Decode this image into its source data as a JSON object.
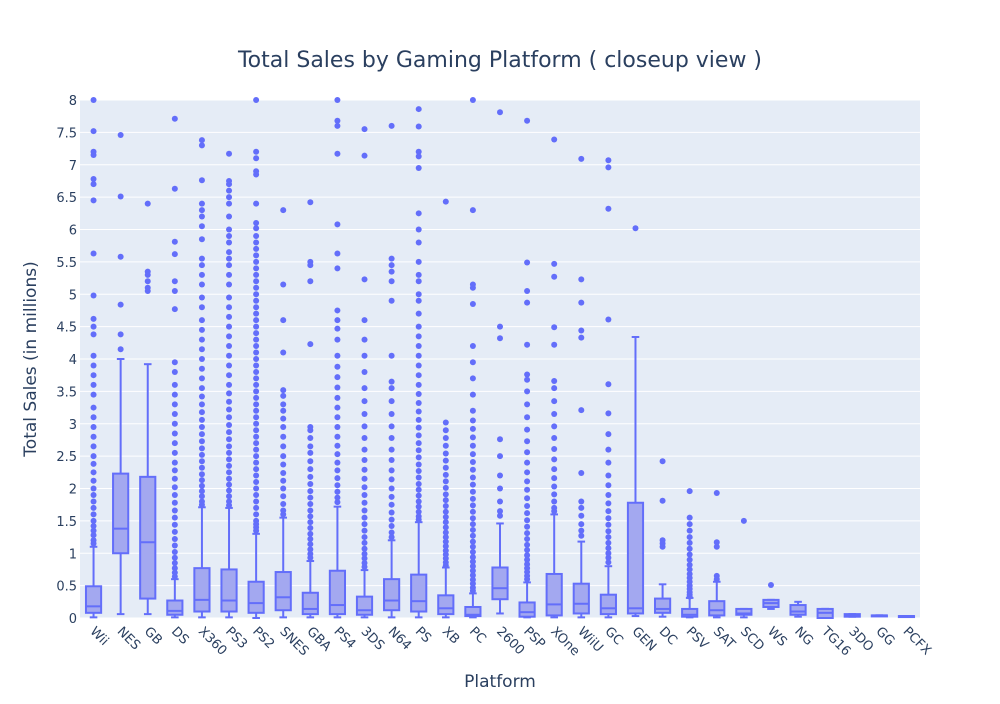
{
  "chart_data": {
    "type": "box",
    "title": "Total Sales by Gaming Platform ( closeup view )",
    "xlabel": "Platform",
    "ylabel": "Total Sales (in millions)",
    "ylim": [
      0,
      8
    ],
    "yticks": [
      0,
      0.5,
      1,
      1.5,
      2,
      2.5,
      3,
      3.5,
      4,
      4.5,
      5,
      5.5,
      6,
      6.5,
      7,
      7.5,
      8
    ],
    "ytick_labels": [
      "0",
      "0.5",
      "1",
      "1.5",
      "2",
      "2.5",
      "3",
      "3.5",
      "4",
      "4.5",
      "5",
      "5.5",
      "6",
      "6.5",
      "7",
      "7.5",
      "8"
    ],
    "grid": true,
    "colors": {
      "box_fill": "#a3a8f0",
      "box_line": "#636efa",
      "plot_bg": "#e5ecf6",
      "text": "#2a3f5f"
    },
    "categories": [
      "Wii",
      "NES",
      "GB",
      "DS",
      "X360",
      "PS3",
      "PS2",
      "SNES",
      "GBA",
      "PS4",
      "3DS",
      "N64",
      "PS",
      "XB",
      "PC",
      "2600",
      "PSP",
      "XOne",
      "WiiU",
      "GC",
      "GEN",
      "DC",
      "PSV",
      "SAT",
      "SCD",
      "WS",
      "NG",
      "TG16",
      "3DO",
      "GG",
      "PCFX"
    ],
    "boxes": [
      {
        "name": "Wii",
        "lowerfence": 0.01,
        "q1": 0.08,
        "median": 0.18,
        "q3": 0.49,
        "upperfence": 1.1,
        "outliers": [
          8.0,
          7.52,
          7.2,
          7.15,
          6.78,
          6.7,
          6.45,
          5.63,
          4.98,
          4.62,
          4.5,
          4.38,
          4.05,
          3.9,
          3.75,
          3.6,
          3.45,
          3.25,
          3.1,
          2.95,
          2.8,
          2.65,
          2.5,
          2.38,
          2.25,
          2.12,
          2.0,
          1.9,
          1.8,
          1.7,
          1.6,
          1.5,
          1.42,
          1.35,
          1.28,
          1.2,
          1.15
        ]
      },
      {
        "name": "NES",
        "lowerfence": 0.06,
        "q1": 1.0,
        "median": 1.38,
        "q3": 2.23,
        "upperfence": 4.0,
        "outliers": [
          7.46,
          6.51,
          5.58,
          4.84,
          4.38,
          4.15
        ]
      },
      {
        "name": "GB",
        "lowerfence": 0.06,
        "q1": 0.3,
        "median": 1.17,
        "q3": 2.18,
        "upperfence": 3.92,
        "outliers": [
          6.4,
          5.35,
          5.3,
          5.2,
          5.1,
          5.05
        ]
      },
      {
        "name": "DS",
        "lowerfence": 0.01,
        "q1": 0.05,
        "median": 0.11,
        "q3": 0.27,
        "upperfence": 0.6,
        "outliers": [
          7.71,
          6.63,
          5.81,
          5.62,
          5.2,
          5.05,
          4.77,
          3.95,
          3.8,
          3.6,
          3.45,
          3.3,
          3.15,
          3.0,
          2.85,
          2.7,
          2.55,
          2.4,
          2.28,
          2.15,
          2.02,
          1.9,
          1.78,
          1.66,
          1.55,
          1.44,
          1.33,
          1.22,
          1.12,
          1.02,
          0.93,
          0.85,
          0.77,
          0.7,
          0.64
        ]
      },
      {
        "name": "X360",
        "lowerfence": 0.01,
        "q1": 0.1,
        "median": 0.28,
        "q3": 0.77,
        "upperfence": 1.71,
        "outliers": [
          7.38,
          7.3,
          6.76,
          6.4,
          6.3,
          6.2,
          6.05,
          5.85,
          5.55,
          5.45,
          5.3,
          5.15,
          4.95,
          4.8,
          4.6,
          4.45,
          4.3,
          4.15,
          4.0,
          3.85,
          3.7,
          3.55,
          3.42,
          3.3,
          3.18,
          3.06,
          2.95,
          2.84,
          2.73,
          2.62,
          2.52,
          2.42,
          2.32,
          2.22,
          2.13,
          2.04,
          1.96,
          1.88,
          1.8,
          1.75
        ]
      },
      {
        "name": "PS3",
        "lowerfence": 0.01,
        "q1": 0.1,
        "median": 0.27,
        "q3": 0.75,
        "upperfence": 1.7,
        "outliers": [
          7.17,
          6.75,
          6.7,
          6.6,
          6.5,
          6.4,
          6.2,
          6.0,
          5.9,
          5.8,
          5.65,
          5.55,
          5.45,
          5.3,
          5.15,
          4.95,
          4.8,
          4.65,
          4.5,
          4.35,
          4.2,
          4.05,
          3.9,
          3.75,
          3.6,
          3.47,
          3.34,
          3.22,
          3.1,
          2.98,
          2.87,
          2.76,
          2.65,
          2.55,
          2.45,
          2.35,
          2.25,
          2.15,
          2.06,
          1.97,
          1.88,
          1.8,
          1.74
        ]
      },
      {
        "name": "PS2",
        "lowerfence": 0.0,
        "q1": 0.08,
        "median": 0.23,
        "q3": 0.56,
        "upperfence": 1.3,
        "outliers": [
          8.0,
          7.2,
          7.1,
          6.9,
          6.85,
          6.4,
          6.1,
          6.02,
          5.9,
          5.8,
          5.7,
          5.6,
          5.5,
          5.4,
          5.3,
          5.2,
          5.1,
          5.0,
          4.9,
          4.8,
          4.7,
          4.6,
          4.5,
          4.4,
          4.3,
          4.2,
          4.1,
          4.0,
          3.9,
          3.8,
          3.7,
          3.6,
          3.5,
          3.4,
          3.3,
          3.2,
          3.1,
          3.0,
          2.9,
          2.8,
          2.7,
          2.6,
          2.5,
          2.4,
          2.3,
          2.2,
          2.1,
          2.0,
          1.9,
          1.8,
          1.7,
          1.6,
          1.5,
          1.45,
          1.4,
          1.35
        ]
      },
      {
        "name": "SNES",
        "lowerfence": 0.01,
        "q1": 0.12,
        "median": 0.32,
        "q3": 0.71,
        "upperfence": 1.55,
        "outliers": [
          6.3,
          5.15,
          4.6,
          4.1,
          3.52,
          3.43,
          3.3,
          3.2,
          3.08,
          2.95,
          2.8,
          2.65,
          2.5,
          2.37,
          2.24,
          2.12,
          2.0,
          1.88,
          1.76,
          1.66,
          1.6
        ]
      },
      {
        "name": "GBA",
        "lowerfence": 0.01,
        "q1": 0.06,
        "median": 0.14,
        "q3": 0.39,
        "upperfence": 0.88,
        "outliers": [
          6.42,
          5.5,
          5.45,
          5.2,
          4.23,
          2.95,
          2.9,
          2.78,
          2.65,
          2.55,
          2.42,
          2.3,
          2.18,
          2.07,
          1.96,
          1.86,
          1.76,
          1.66,
          1.57,
          1.48,
          1.39,
          1.3,
          1.22,
          1.14,
          1.06,
          0.99,
          0.93
        ]
      },
      {
        "name": "PS4",
        "lowerfence": 0.01,
        "q1": 0.06,
        "median": 0.2,
        "q3": 0.73,
        "upperfence": 1.72,
        "outliers": [
          8.0,
          7.68,
          7.6,
          7.17,
          6.08,
          5.63,
          5.4,
          4.75,
          4.6,
          4.47,
          4.3,
          4.05,
          3.88,
          3.72,
          3.56,
          3.4,
          3.25,
          3.1,
          2.95,
          2.8,
          2.66,
          2.53,
          2.4,
          2.28,
          2.16,
          2.05,
          1.95,
          1.86,
          1.79
        ]
      },
      {
        "name": "3DS",
        "lowerfence": 0.01,
        "q1": 0.05,
        "median": 0.12,
        "q3": 0.33,
        "upperfence": 0.74,
        "outliers": [
          7.55,
          7.14,
          5.23,
          4.6,
          4.3,
          4.05,
          3.8,
          3.55,
          3.35,
          3.15,
          2.96,
          2.78,
          2.6,
          2.44,
          2.29,
          2.15,
          2.02,
          1.9,
          1.78,
          1.66,
          1.55,
          1.45,
          1.35,
          1.25,
          1.16,
          1.07,
          0.99,
          0.92,
          0.85,
          0.79
        ]
      },
      {
        "name": "N64",
        "lowerfence": 0.01,
        "q1": 0.12,
        "median": 0.27,
        "q3": 0.6,
        "upperfence": 1.2,
        "outliers": [
          7.6,
          5.55,
          5.45,
          5.35,
          5.2,
          4.9,
          4.05,
          3.65,
          3.55,
          3.35,
          3.15,
          2.96,
          2.78,
          2.6,
          2.44,
          2.28,
          2.14,
          2.0,
          1.87,
          1.75,
          1.63,
          1.52,
          1.42,
          1.32,
          1.25
        ]
      },
      {
        "name": "PS",
        "lowerfence": 0.01,
        "q1": 0.1,
        "median": 0.26,
        "q3": 0.67,
        "upperfence": 1.48,
        "outliers": [
          7.86,
          7.59,
          7.2,
          7.13,
          6.95,
          6.25,
          6.0,
          5.8,
          5.5,
          5.3,
          5.2,
          5.0,
          4.9,
          4.7,
          4.5,
          4.35,
          4.2,
          4.05,
          3.9,
          3.75,
          3.6,
          3.46,
          3.32,
          3.19,
          3.06,
          2.94,
          2.82,
          2.7,
          2.59,
          2.48,
          2.37,
          2.27,
          2.17,
          2.07,
          1.98,
          1.89,
          1.8,
          1.72,
          1.64,
          1.57,
          1.52
        ]
      },
      {
        "name": "XB",
        "lowerfence": 0.01,
        "q1": 0.06,
        "median": 0.15,
        "q3": 0.35,
        "upperfence": 0.78,
        "outliers": [
          6.43,
          3.02,
          2.9,
          2.78,
          2.66,
          2.54,
          2.43,
          2.32,
          2.21,
          2.11,
          2.01,
          1.91,
          1.82,
          1.73,
          1.64,
          1.56,
          1.48,
          1.4,
          1.32,
          1.25,
          1.18,
          1.11,
          1.04,
          0.98,
          0.92,
          0.86,
          0.81
        ]
      },
      {
        "name": "PC",
        "lowerfence": 0.01,
        "q1": 0.03,
        "median": 0.05,
        "q3": 0.17,
        "upperfence": 0.38,
        "outliers": [
          8.0,
          6.3,
          5.15,
          5.1,
          4.85,
          4.2,
          3.95,
          3.7,
          3.45,
          3.2,
          3.05,
          2.92,
          2.79,
          2.66,
          2.53,
          2.41,
          2.29,
          2.17,
          2.06,
          1.95,
          1.84,
          1.74,
          1.64,
          1.54,
          1.45,
          1.36,
          1.27,
          1.18,
          1.1,
          1.02,
          0.94,
          0.87,
          0.8,
          0.73,
          0.66,
          0.59,
          0.53,
          0.47,
          0.42
        ]
      },
      {
        "name": "2600",
        "lowerfence": 0.07,
        "q1": 0.29,
        "median": 0.46,
        "q3": 0.78,
        "upperfence": 1.46,
        "outliers": [
          7.81,
          4.5,
          4.32,
          2.76,
          2.5,
          2.2,
          2.0,
          1.8,
          1.65,
          1.58
        ]
      },
      {
        "name": "PSP",
        "lowerfence": 0.01,
        "q1": 0.02,
        "median": 0.09,
        "q3": 0.24,
        "upperfence": 0.55,
        "outliers": [
          7.68,
          5.49,
          5.05,
          4.87,
          4.22,
          3.76,
          3.68,
          3.5,
          3.3,
          3.1,
          2.91,
          2.73,
          2.56,
          2.4,
          2.25,
          2.11,
          1.98,
          1.85,
          1.73,
          1.62,
          1.51,
          1.41,
          1.31,
          1.22,
          1.13,
          1.05,
          0.97,
          0.9,
          0.83,
          0.77,
          0.71,
          0.65,
          0.6
        ]
      },
      {
        "name": "XOne",
        "lowerfence": 0.01,
        "q1": 0.04,
        "median": 0.21,
        "q3": 0.68,
        "upperfence": 1.6,
        "outliers": [
          7.39,
          5.47,
          5.27,
          4.49,
          4.22,
          3.66,
          3.55,
          3.35,
          3.15,
          2.96,
          2.78,
          2.61,
          2.45,
          2.3,
          2.16,
          2.03,
          1.91,
          1.8,
          1.7,
          1.65
        ]
      },
      {
        "name": "WiiU",
        "lowerfence": 0.01,
        "q1": 0.07,
        "median": 0.22,
        "q3": 0.53,
        "upperfence": 1.18,
        "outliers": [
          7.09,
          5.23,
          4.87,
          4.44,
          4.33,
          3.21,
          2.24,
          1.8,
          1.7,
          1.58,
          1.45,
          1.35,
          1.27
        ]
      },
      {
        "name": "GC",
        "lowerfence": 0.01,
        "q1": 0.06,
        "median": 0.15,
        "q3": 0.36,
        "upperfence": 0.8,
        "outliers": [
          7.07,
          6.96,
          6.32,
          4.61,
          3.61,
          3.16,
          2.84,
          2.6,
          2.4,
          2.2,
          2.05,
          1.9,
          1.77,
          1.65,
          1.54,
          1.44,
          1.34,
          1.25,
          1.16,
          1.08,
          1.0,
          0.93,
          0.86
        ]
      },
      {
        "name": "GEN",
        "lowerfence": 0.03,
        "q1": 0.07,
        "median": 0.15,
        "q3": 1.78,
        "upperfence": 4.34,
        "outliers": [
          6.02
        ]
      },
      {
        "name": "DC",
        "lowerfence": 0.02,
        "q1": 0.08,
        "median": 0.14,
        "q3": 0.3,
        "upperfence": 0.52,
        "outliers": [
          2.42,
          1.81,
          1.2,
          1.15,
          1.1
        ]
      },
      {
        "name": "PSV",
        "lowerfence": 0.01,
        "q1": 0.02,
        "median": 0.05,
        "q3": 0.14,
        "upperfence": 0.31,
        "outliers": [
          1.96,
          1.55,
          1.45,
          1.35,
          1.25,
          1.16,
          1.07,
          0.98,
          0.9,
          0.82,
          0.75,
          0.68,
          0.62,
          0.56,
          0.5,
          0.45,
          0.4,
          0.36,
          0.33
        ]
      },
      {
        "name": "SAT",
        "lowerfence": 0.01,
        "q1": 0.04,
        "median": 0.12,
        "q3": 0.26,
        "upperfence": 0.56,
        "outliers": [
          1.93,
          1.17,
          1.1,
          0.65,
          0.6
        ]
      },
      {
        "name": "SCD",
        "lowerfence": 0.01,
        "q1": 0.05,
        "median": 0.07,
        "q3": 0.14,
        "upperfence": 0.14,
        "outliers": [
          1.5
        ]
      },
      {
        "name": "WS",
        "lowerfence": 0.14,
        "q1": 0.17,
        "median": 0.23,
        "q3": 0.28,
        "upperfence": 0.28,
        "outliers": [
          0.51
        ]
      },
      {
        "name": "NG",
        "lowerfence": 0.02,
        "q1": 0.05,
        "median": 0.1,
        "q3": 0.2,
        "upperfence": 0.25,
        "outliers": []
      },
      {
        "name": "TG16",
        "lowerfence": 0.14,
        "q1": 0.0,
        "median": 0.08,
        "q3": 0.14,
        "upperfence": 0.14,
        "outliers": []
      },
      {
        "name": "3DO",
        "lowerfence": 0.02,
        "q1": 0.02,
        "median": 0.04,
        "q3": 0.06,
        "upperfence": 0.06,
        "outliers": []
      },
      {
        "name": "GG",
        "lowerfence": 0.04,
        "q1": 0.04,
        "median": 0.04,
        "q3": 0.04,
        "upperfence": 0.04,
        "outliers": []
      },
      {
        "name": "PCFX",
        "lowerfence": 0.03,
        "q1": 0.03,
        "median": 0.03,
        "q3": 0.03,
        "upperfence": 0.03,
        "outliers": []
      }
    ]
  }
}
